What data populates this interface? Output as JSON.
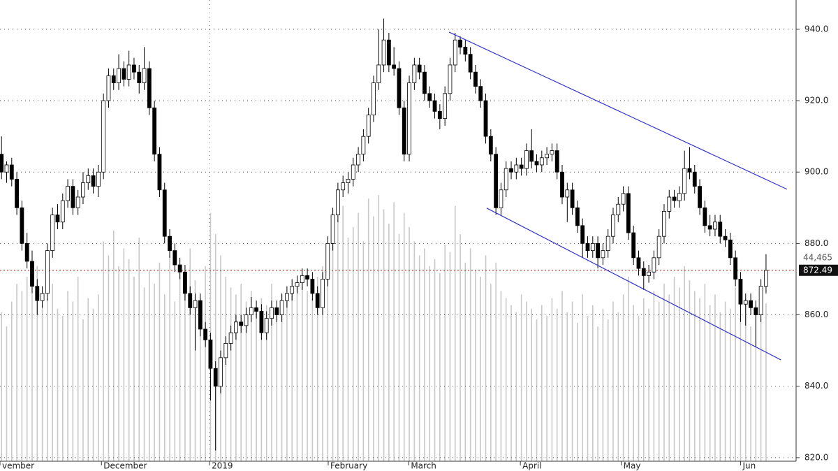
{
  "chart_data": {
    "type": "candlestick",
    "ylim": [
      819.0,
      948.2
    ],
    "yticks": [
      {
        "value": 820,
        "label": "820.0"
      },
      {
        "value": 840,
        "label": "840.0"
      },
      {
        "value": 860,
        "label": "860.0"
      },
      {
        "value": 880,
        "label": "880.0"
      },
      {
        "value": 900,
        "label": "900.0"
      },
      {
        "value": 920,
        "label": "920.0"
      },
      {
        "value": 940,
        "label": "940.0"
      }
    ],
    "xlim": [
      -0.3,
      155.9
    ],
    "xticks": [
      {
        "value": -0.3,
        "label": "vember"
      },
      {
        "value": 19.6,
        "label": "December"
      },
      {
        "value": 40.8,
        "label": "2019"
      },
      {
        "value": 64.1,
        "label": "February"
      },
      {
        "value": 79.9,
        "label": "March"
      },
      {
        "value": 101.8,
        "label": "April"
      },
      {
        "value": 121.6,
        "label": "May"
      },
      {
        "value": 145,
        "label": "Jun"
      }
    ],
    "grid": true,
    "up_color": "#ffffff",
    "down_color": "#000000",
    "ohlc": [
      [
        905,
        910,
        898,
        900
      ],
      [
        900,
        903,
        897,
        902
      ],
      [
        902,
        904,
        896,
        898
      ],
      [
        898,
        900,
        888,
        890
      ],
      [
        890,
        892,
        878,
        880
      ],
      [
        880,
        883,
        873,
        875
      ],
      [
        875,
        878,
        866,
        868
      ],
      [
        868,
        870,
        860,
        864
      ],
      [
        864,
        868,
        862,
        866
      ],
      [
        866,
        880,
        864,
        878
      ],
      [
        878,
        890,
        876,
        888
      ],
      [
        888,
        891,
        884,
        886
      ],
      [
        886,
        894,
        884,
        892
      ],
      [
        892,
        898,
        890,
        896
      ],
      [
        896,
        898,
        888,
        890
      ],
      [
        890,
        895,
        888,
        893
      ],
      [
        893,
        900,
        891,
        897
      ],
      [
        897,
        901,
        895,
        899
      ],
      [
        899,
        901,
        894,
        896
      ],
      [
        896,
        902,
        893,
        900
      ],
      [
        900,
        922,
        898,
        920
      ],
      [
        920,
        929,
        918,
        927
      ],
      [
        927,
        929,
        923,
        925
      ],
      [
        925,
        933,
        923,
        929
      ],
      [
        929,
        931,
        924,
        926
      ],
      [
        926,
        934,
        924,
        930
      ],
      [
        930,
        932,
        926,
        928
      ],
      [
        928,
        930,
        922,
        925
      ],
      [
        925,
        935,
        923,
        929
      ],
      [
        929,
        931,
        916,
        918
      ],
      [
        918,
        920,
        903,
        905
      ],
      [
        905,
        907,
        893,
        895
      ],
      [
        895,
        897,
        880,
        882
      ],
      [
        882,
        884,
        876,
        878
      ],
      [
        878,
        880,
        872,
        874
      ],
      [
        874,
        876,
        870,
        872
      ],
      [
        872,
        874,
        864,
        866
      ],
      [
        866,
        868,
        860,
        862
      ],
      [
        862,
        866,
        850,
        864
      ],
      [
        864,
        866,
        854,
        856
      ],
      [
        856,
        858,
        851,
        853
      ],
      [
        853,
        855,
        836,
        845
      ],
      [
        845,
        847,
        822,
        840
      ],
      [
        840,
        850,
        838,
        848
      ],
      [
        848,
        854,
        846,
        852
      ],
      [
        852,
        857,
        850,
        855
      ],
      [
        855,
        860,
        853,
        858
      ],
      [
        858,
        860,
        855,
        857
      ],
      [
        857,
        862,
        855,
        860
      ],
      [
        860,
        865,
        858,
        862
      ],
      [
        862,
        864,
        859,
        861
      ],
      [
        861,
        863,
        853,
        855
      ],
      [
        855,
        861,
        853,
        859
      ],
      [
        859,
        864,
        857,
        862
      ],
      [
        862,
        864,
        858,
        860
      ],
      [
        860,
        866,
        858,
        864
      ],
      [
        864,
        868,
        862,
        866
      ],
      [
        866,
        870,
        864,
        868
      ],
      [
        868,
        871,
        866,
        869
      ],
      [
        869,
        873,
        867,
        871
      ],
      [
        871,
        873,
        868,
        870
      ],
      [
        870,
        872,
        864,
        866
      ],
      [
        866,
        868,
        860,
        862
      ],
      [
        862,
        872,
        860,
        870
      ],
      [
        870,
        882,
        868,
        880
      ],
      [
        880,
        890,
        878,
        888
      ],
      [
        888,
        897,
        886,
        895
      ],
      [
        895,
        899,
        893,
        897
      ],
      [
        897,
        900,
        894,
        898
      ],
      [
        898,
        904,
        896,
        902
      ],
      [
        902,
        907,
        900,
        905
      ],
      [
        905,
        912,
        903,
        910
      ],
      [
        910,
        918,
        908,
        916
      ],
      [
        916,
        927,
        914,
        925
      ],
      [
        925,
        940,
        923,
        930
      ],
      [
        930,
        943,
        928,
        937
      ],
      [
        937,
        939,
        928,
        930
      ],
      [
        930,
        935,
        927,
        929
      ],
      [
        929,
        931,
        916,
        918
      ],
      [
        918,
        920,
        903,
        905
      ],
      [
        905,
        927,
        903,
        925
      ],
      [
        925,
        932,
        923,
        930
      ],
      [
        930,
        932,
        926,
        928
      ],
      [
        928,
        930,
        920,
        922
      ],
      [
        922,
        924,
        918,
        920
      ],
      [
        920,
        922,
        915,
        917
      ],
      [
        917,
        919,
        912,
        915
      ],
      [
        915,
        924,
        913,
        922
      ],
      [
        922,
        932,
        920,
        930
      ],
      [
        930,
        939,
        928,
        937
      ],
      [
        937,
        938,
        933,
        935
      ],
      [
        935,
        937,
        931,
        933
      ],
      [
        933,
        935,
        926,
        928
      ],
      [
        928,
        930,
        922,
        924
      ],
      [
        924,
        926,
        918,
        920
      ],
      [
        920,
        922,
        908,
        910
      ],
      [
        910,
        912,
        903,
        905
      ],
      [
        905,
        907,
        888,
        890
      ],
      [
        890,
        897,
        888,
        895
      ],
      [
        895,
        903,
        893,
        901
      ],
      [
        901,
        903,
        898,
        900
      ],
      [
        900,
        904,
        898,
        902
      ],
      [
        902,
        904,
        899,
        901
      ],
      [
        901,
        908,
        899,
        906
      ],
      [
        906,
        912,
        901,
        903
      ],
      [
        903,
        905,
        900,
        902
      ],
      [
        902,
        906,
        900,
        904
      ],
      [
        904,
        907,
        902,
        905
      ],
      [
        905,
        908,
        903,
        906
      ],
      [
        906,
        908,
        898,
        900
      ],
      [
        900,
        902,
        891,
        893
      ],
      [
        893,
        897,
        886,
        895
      ],
      [
        895,
        897,
        888,
        890
      ],
      [
        890,
        892,
        883,
        885
      ],
      [
        885,
        887,
        876,
        880
      ],
      [
        880,
        882,
        876,
        878
      ],
      [
        878,
        882,
        876,
        880
      ],
      [
        880,
        882,
        873,
        876
      ],
      [
        876,
        880,
        874,
        878
      ],
      [
        878,
        884,
        876,
        882
      ],
      [
        882,
        890,
        880,
        888
      ],
      [
        888,
        893,
        886,
        891
      ],
      [
        891,
        896,
        889,
        894
      ],
      [
        894,
        896,
        881,
        883
      ],
      [
        883,
        885,
        874,
        876
      ],
      [
        876,
        878,
        871,
        873
      ],
      [
        873,
        875,
        867,
        871
      ],
      [
        871,
        874,
        869,
        872
      ],
      [
        872,
        878,
        870,
        876
      ],
      [
        876,
        884,
        874,
        882
      ],
      [
        882,
        891,
        880,
        889
      ],
      [
        889,
        895,
        887,
        893
      ],
      [
        893,
        895,
        890,
        892
      ],
      [
        892,
        896,
        890,
        894
      ],
      [
        894,
        906,
        892,
        901
      ],
      [
        901,
        907,
        898,
        900
      ],
      [
        900,
        902,
        894,
        896
      ],
      [
        896,
        898,
        888,
        890
      ],
      [
        890,
        892,
        883,
        885
      ],
      [
        885,
        888,
        882,
        884
      ],
      [
        884,
        888,
        882,
        886
      ],
      [
        886,
        888,
        880,
        882
      ],
      [
        882,
        884,
        879,
        881
      ],
      [
        881,
        883,
        874,
        876
      ],
      [
        876,
        878,
        868,
        870
      ],
      [
        870,
        872,
        858,
        863
      ],
      [
        863,
        866,
        857,
        864
      ],
      [
        864,
        866,
        860,
        862
      ],
      [
        862,
        864,
        851,
        860
      ],
      [
        860,
        870,
        858,
        868
      ],
      [
        868,
        877,
        866,
        872.49
      ]
    ],
    "volume": {
      "color": "#c8c8c8",
      "vlim": [
        0,
        130000
      ],
      "last_label": "44,465",
      "values": [
        42000,
        38000,
        45000,
        50000,
        48000,
        52000,
        47000,
        55000,
        44000,
        46000,
        50000,
        43000,
        41000,
        48000,
        45000,
        52000,
        40000,
        46000,
        43000,
        47000,
        62000,
        58000,
        65000,
        55000,
        60000,
        57000,
        52000,
        63000,
        49000,
        54000,
        50000,
        56000,
        47000,
        58000,
        45000,
        53000,
        48000,
        60000,
        51000,
        46000,
        55000,
        70000,
        64000,
        58000,
        52000,
        49000,
        47000,
        50000,
        45000,
        48000,
        43000,
        46000,
        44000,
        50000,
        42000,
        47000,
        45000,
        49000,
        51000,
        53000,
        48000,
        46000,
        52000,
        55000,
        60000,
        65000,
        68000,
        72000,
        63000,
        66000,
        70000,
        62000,
        74000,
        69000,
        75000,
        71000,
        67000,
        73000,
        64000,
        70000,
        66000,
        62000,
        58000,
        60000,
        55000,
        57000,
        53000,
        61000,
        59000,
        72000,
        64000,
        56000,
        60000,
        54000,
        52000,
        58000,
        50000,
        56000,
        48000,
        46000,
        44000,
        42000,
        47000,
        45000,
        43000,
        40000,
        44000,
        41000,
        46000,
        43000,
        48000,
        42000,
        45000,
        39000,
        47000,
        41000,
        44000,
        38000,
        43000,
        40000,
        45000,
        42000,
        47000,
        52000,
        44000,
        41000,
        46000,
        43000,
        48000,
        45000,
        50000,
        47000,
        52000,
        49000,
        55000,
        51000,
        48000,
        46000,
        50000,
        44000,
        47000,
        42000,
        45000,
        43000,
        49000,
        41000,
        46000,
        38000,
        44000,
        40000,
        44465
      ]
    },
    "trendlines": [
      {
        "color": "#3333cc",
        "x": [
          87.8,
          154.1
        ],
        "y": [
          939.2,
          895.2
        ]
      },
      {
        "color": "#3333cc",
        "x": [
          95.2,
          152.9
        ],
        "y": [
          889.9,
          847.4
        ]
      }
    ],
    "last_line_color": "#cc0000"
  }
}
